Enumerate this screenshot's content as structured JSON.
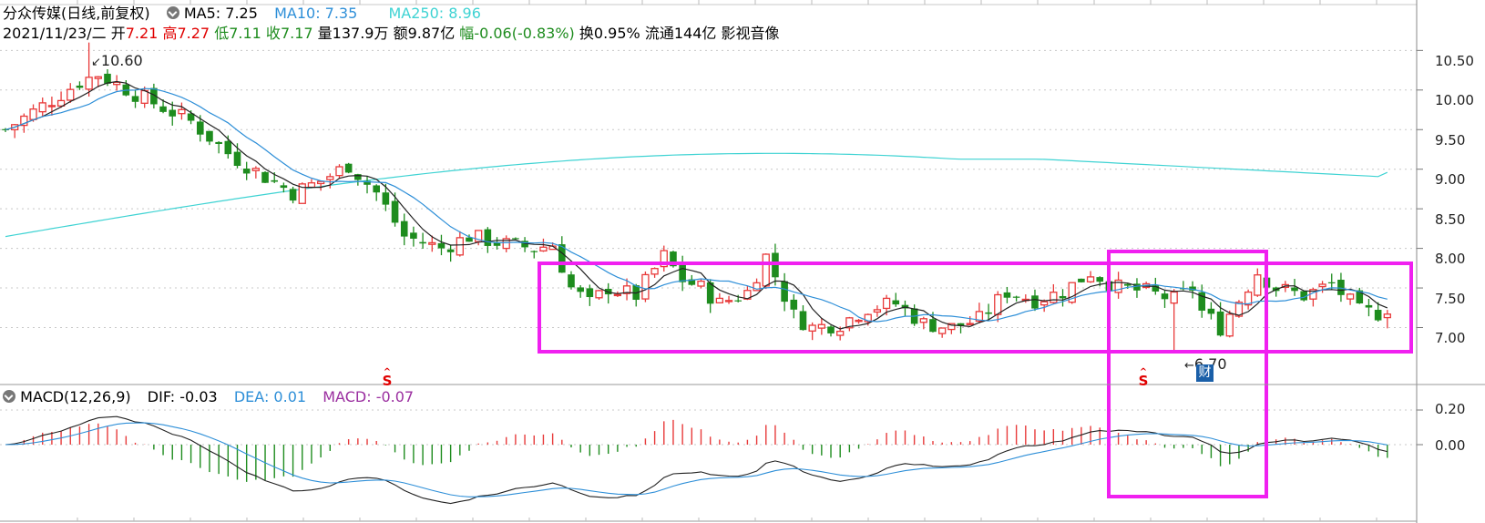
{
  "header": {
    "stock_title": "分众传媒(日线,前复权)",
    "ma5": "MA5: 7.25",
    "ma10": "MA10: 7.35",
    "ma250": "MA250: 8.96",
    "date": "2021/11/23/二",
    "open_label": "开",
    "open_value": "7.21",
    "high_label": "高",
    "high_value": "7.27",
    "low_label": "低",
    "low_value": "7.11",
    "close_label": "收",
    "close_value": "7.17",
    "volume": "量137.9万",
    "amount": "额9.87亿",
    "change_label": "幅",
    "change_value": "-0.06(-0.83%)",
    "turnover": "换0.95%",
    "float_cap": "流通144亿",
    "sector": "影视音像"
  },
  "macd_header": {
    "title": "MACD(12,26,9)",
    "dif": "DIF: -0.03",
    "dea": "DEA: 0.01",
    "macd": "MACD: -0.07"
  },
  "annotations": {
    "high_label": "10.60",
    "low_label": "6.70",
    "s_marker": "S",
    "cai_marker": "财"
  },
  "colors": {
    "up": "#e83a3a",
    "down": "#1e8c1e",
    "ma5": "#222222",
    "ma10": "#2e8fd8",
    "ma250": "#3fd3d3",
    "highlight_box": "#f020f0",
    "ma250_label": "#3fd3d3",
    "ma10_label": "#2e8fd8",
    "macd_label": "#9b2fa0",
    "change_green": "#1e8c1e",
    "price_red": "#e00000"
  },
  "chart_data": [
    {
      "type": "candlestick",
      "y_axis_ticks": [
        "10.50",
        "10.00",
        "9.50",
        "9.00",
        "8.50",
        "8.00",
        "7.50",
        "7.00"
      ],
      "ylim": [
        6.6,
        10.85
      ],
      "series": [
        {
          "name": "MA5"
        },
        {
          "name": "MA10"
        },
        {
          "name": "MA250"
        }
      ],
      "high": 10.6,
      "low": 6.7,
      "last_ma250": 8.96,
      "last_close": 7.17
    },
    {
      "type": "macd",
      "y_axis_ticks": [
        "0.20",
        "0.00"
      ],
      "ylim": [
        -0.22,
        0.25
      ],
      "dif": -0.03,
      "dea": 0.01,
      "macd": -0.07
    }
  ]
}
